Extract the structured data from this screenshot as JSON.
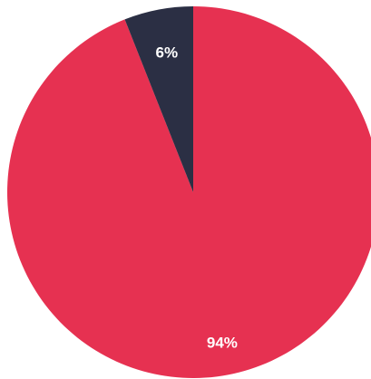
{
  "chart_data": {
    "type": "pie",
    "slices": [
      {
        "label": "94%",
        "value": 94,
        "color": "#e63151"
      },
      {
        "label": "6%",
        "value": 6,
        "color": "#2b2f44"
      }
    ],
    "start_angle_deg": 0,
    "direction": "clockwise"
  }
}
